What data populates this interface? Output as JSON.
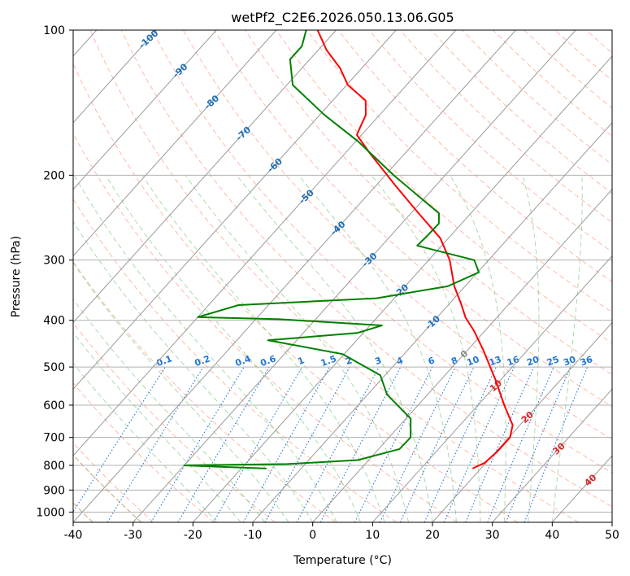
{
  "chart_data": {
    "type": "line",
    "title": "wetPf2_C2E6.2026.050.13.06.G05",
    "xlabel": "Temperature (°C)",
    "ylabel": "Pressure (hPa)",
    "xlim": [
      -40,
      50
    ],
    "ylim": [
      1050,
      100
    ],
    "y_log_scale": true,
    "grid": true,
    "x_ticks": [
      -40,
      -30,
      -20,
      -10,
      0,
      10,
      20,
      30,
      40,
      50
    ],
    "y_ticks": [
      100,
      200,
      300,
      400,
      500,
      600,
      700,
      800,
      900,
      1000
    ],
    "skew": true,
    "colors": {
      "temperature": "#ff0000",
      "dewpoint": "#008000",
      "isotherm": "#888888",
      "dry_adiabat": "#ff8060",
      "moist_adiabat": "#60c060",
      "mixing_ratio": "#1f77d4",
      "isotherm_label": "#1f6fb4",
      "reference_curve": "#d4b48c"
    },
    "series": [
      {
        "role": "temperature",
        "points": [
          {
            "p": 812,
            "t": 18.6
          },
          {
            "p": 790,
            "t": 19.8
          },
          {
            "p": 750,
            "t": 20.2
          },
          {
            "p": 700,
            "t": 20.2
          },
          {
            "p": 660,
            "t": 18.8
          },
          {
            "p": 600,
            "t": 14.4
          },
          {
            "p": 530,
            "t": 9.0
          },
          {
            "p": 460,
            "t": 2.5
          },
          {
            "p": 420,
            "t": -1.9
          },
          {
            "p": 395,
            "t": -5.2
          },
          {
            "p": 370,
            "t": -8.0
          },
          {
            "p": 340,
            "t": -11.8
          },
          {
            "p": 300,
            "t": -16.5
          },
          {
            "p": 270,
            "t": -21.4
          },
          {
            "p": 240,
            "t": -28.7
          },
          {
            "p": 210,
            "t": -36.8
          },
          {
            "p": 180,
            "t": -45.9
          },
          {
            "p": 165,
            "t": -50.8
          },
          {
            "p": 160,
            "t": -51.3
          },
          {
            "p": 150,
            "t": -52.3
          },
          {
            "p": 140,
            "t": -54.5
          },
          {
            "p": 130,
            "t": -59.8
          },
          {
            "p": 120,
            "t": -63.6
          },
          {
            "p": 110,
            "t": -68.6
          },
          {
            "p": 100,
            "t": -73.1
          }
        ]
      },
      {
        "role": "dewpoint",
        "points": [
          {
            "p": 812,
            "t": -15.8
          },
          {
            "p": 800,
            "t": -30.0
          },
          {
            "p": 795,
            "t": -13.0
          },
          {
            "p": 780,
            "t": -1.8
          },
          {
            "p": 740,
            "t": 3.5
          },
          {
            "p": 700,
            "t": 3.6
          },
          {
            "p": 640,
            "t": 0.8
          },
          {
            "p": 570,
            "t": -6.8
          },
          {
            "p": 520,
            "t": -10.8
          },
          {
            "p": 470,
            "t": -20.3
          },
          {
            "p": 440,
            "t": -34.8
          },
          {
            "p": 425,
            "t": -21.0
          },
          {
            "p": 410,
            "t": -18.0
          },
          {
            "p": 398,
            "t": -36.0
          },
          {
            "p": 394,
            "t": -50.0
          },
          {
            "p": 372,
            "t": -45.0
          },
          {
            "p": 360,
            "t": -23.0
          },
          {
            "p": 340,
            "t": -12.9
          },
          {
            "p": 318,
            "t": -9.8
          },
          {
            "p": 300,
            "t": -12.4
          },
          {
            "p": 280,
            "t": -24.1
          },
          {
            "p": 268,
            "t": -23.9
          },
          {
            "p": 252,
            "t": -23.8
          },
          {
            "p": 240,
            "t": -25.3
          },
          {
            "p": 200,
            "t": -38.6
          },
          {
            "p": 170,
            "t": -49.7
          },
          {
            "p": 150,
            "t": -59.2
          },
          {
            "p": 130,
            "t": -69.0
          },
          {
            "p": 115,
            "t": -73.3
          },
          {
            "p": 108,
            "t": -73.3
          },
          {
            "p": 100,
            "t": -75.0
          }
        ]
      }
    ],
    "isotherm_labels": [
      "-100",
      "-90",
      "-80",
      "-70",
      "-60",
      "-50",
      "-40",
      "-30",
      "-20",
      "-10",
      "0",
      "10",
      "20",
      "30",
      "40"
    ],
    "isotherm_label_values": [
      -100,
      -90,
      -80,
      -70,
      -60,
      -50,
      -40,
      -30,
      -20,
      -10,
      0,
      10,
      20,
      30,
      40
    ],
    "mixing_ratio_labels": [
      "0.1",
      "0.2",
      "0.4",
      "0.6",
      "1",
      "1.5",
      "2",
      "3",
      "4",
      "6",
      "8",
      "10",
      "13",
      "16",
      "20",
      "25",
      "30",
      "36"
    ],
    "mixing_ratio_values": [
      0.1,
      0.2,
      0.4,
      0.6,
      1,
      1.5,
      2,
      3,
      4,
      6,
      8,
      10,
      13,
      16,
      20,
      25,
      30,
      36
    ],
    "mixing_ratio_label_pressure": 500
  }
}
